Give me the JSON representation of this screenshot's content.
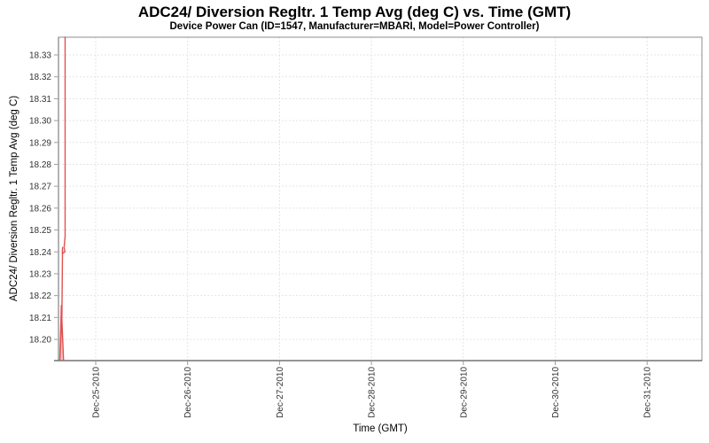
{
  "chart_data": {
    "type": "line",
    "title": "ADC24/ Diversion Regltr. 1 Temp Avg (deg C) vs. Time (GMT)",
    "subtitle": "Device Power Can (ID=1547, Manufacturer=MBARI, Model=Power Controller)",
    "xlabel": "Time (GMT)",
    "ylabel": "ADC24/ Diversion Regltr. 1 Temp Avg (deg C)",
    "legend": "none",
    "grid": true,
    "x_tick_labels": [
      "Dec-25-2010",
      "Dec-26-2010",
      "Dec-27-2010",
      "Dec-28-2010",
      "Dec-29-2010",
      "Dec-30-2010",
      "Dec-31-2010"
    ],
    "x_tick_days": [
      0,
      1,
      2,
      3,
      4,
      5,
      6
    ],
    "xlim_days": [
      -0.405,
      6.596
    ],
    "y_tick_labels": [
      "18.20",
      "18.21",
      "18.22",
      "18.23",
      "18.24",
      "18.25",
      "18.26",
      "18.27",
      "18.28",
      "18.29",
      "18.30",
      "18.31",
      "18.32",
      "18.33"
    ],
    "y_tick_values": [
      18.2,
      18.21,
      18.22,
      18.23,
      18.24,
      18.25,
      18.26,
      18.27,
      18.28,
      18.29,
      18.3,
      18.31,
      18.32,
      18.33
    ],
    "ylim": [
      18.1903,
      18.3381
    ],
    "series": [
      {
        "name": "ADC24/ Diversion Regltr. 1 Temp Avg (deg C)",
        "color": "#e05252",
        "points": [
          [
            -0.333,
            18.3381
          ],
          [
            -0.333,
            18.247
          ],
          [
            -0.344,
            18.242
          ],
          [
            -0.335,
            18.24
          ],
          [
            -0.364,
            18.2392
          ],
          [
            -0.361,
            18.242
          ],
          [
            -0.368,
            18.21
          ],
          [
            -0.39,
            18.1905
          ],
          [
            -0.374,
            18.2155
          ],
          [
            -0.35,
            18.1905
          ]
        ]
      }
    ],
    "fill_region": {
      "color": "#f2a0a0",
      "opacity": 0.6,
      "points": [
        [
          -0.39,
          18.1905
        ],
        [
          -0.372,
          18.218
        ],
        [
          -0.35,
          18.1905
        ]
      ]
    },
    "colors": {
      "grid": "#e4e4e4",
      "border": "#8c8c8c",
      "axis_line": "#565656",
      "tick": "#9b9b9b",
      "tick_label": "#333333",
      "series": "#e05252",
      "background": "#ffffff"
    }
  }
}
